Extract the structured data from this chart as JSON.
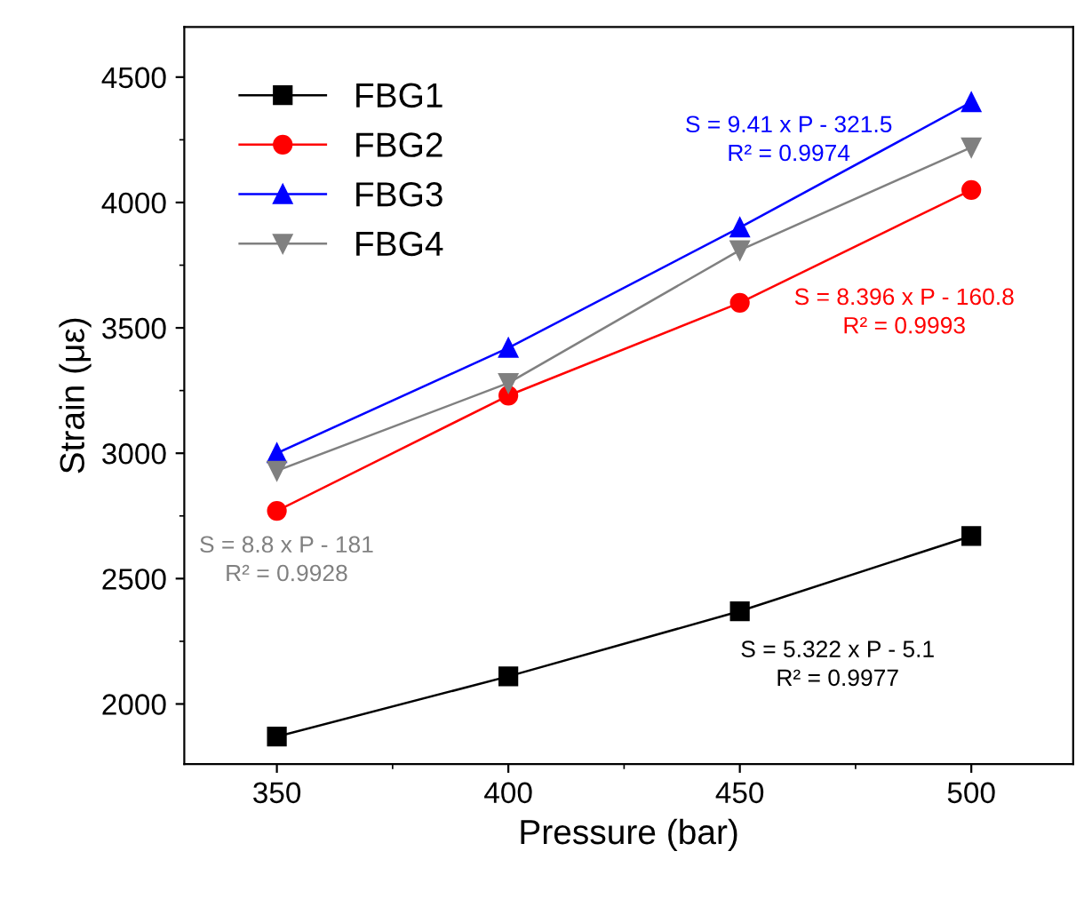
{
  "chart_data": {
    "type": "line",
    "xlabel": "Pressure (bar)",
    "ylabel": "Strain (με)",
    "x": [
      350,
      400,
      450,
      500
    ],
    "series": [
      {
        "name": "FBG1",
        "color": "#000000",
        "marker": "square",
        "values": [
          1870,
          2110,
          2370,
          2670
        ]
      },
      {
        "name": "FBG2",
        "color": "#ff0000",
        "marker": "circle",
        "values": [
          2770,
          3230,
          3600,
          4050
        ]
      },
      {
        "name": "FBG3",
        "color": "#0000ff",
        "marker": "triangle",
        "values": [
          3000,
          3420,
          3900,
          4400
        ]
      },
      {
        "name": "FBG4",
        "color": "#808080",
        "marker": "triangle_down",
        "values": [
          2930,
          3280,
          3810,
          4220
        ]
      }
    ],
    "annotations": [
      "S = 5.322 x P - 5.1\nR² = 0.9977",
      "S = 8.396 x P - 160.8\nR² = 0.9993",
      "S = 9.41 x P - 321.5\nR² = 0.9974",
      "S = 8.8 x P - 181\nR² = 0.9928"
    ],
    "xlim": [
      330,
      522
    ],
    "xticks": [
      350,
      400,
      450,
      500
    ],
    "ylim": [
      1760,
      4700
    ],
    "yticks": [
      2000,
      2500,
      3000,
      3500,
      4000,
      4500
    ],
    "grid": false,
    "legend": "top left",
    "line_style": "solid"
  }
}
